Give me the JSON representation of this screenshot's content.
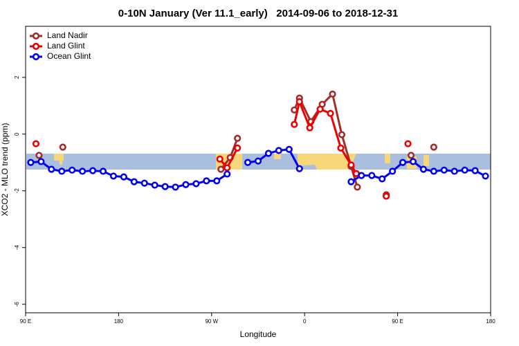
{
  "chart_data": {
    "type": "line",
    "title": "0-10N January (Ver 11.1_early)   2014-09-06 to 2018-12-31",
    "xlabel": "Longitude",
    "ylabel": "XCO2 - MLO trend (ppm)",
    "xlim": [
      90,
      540
    ],
    "ylim": [
      -6.3,
      3.8
    ],
    "xticks": [
      {
        "value": 90,
        "label": "90 E"
      },
      180,
      {
        "value": 270,
        "label": "90 W"
      },
      {
        "value": 360,
        "label": "0"
      },
      {
        "value": 450,
        "label": "90 E"
      },
      {
        "value": 540,
        "label": "180"
      }
    ],
    "yticks": [
      2,
      0,
      -2,
      -4,
      -6
    ],
    "legend": "topleft",
    "series": [
      {
        "name": "Land Nadir",
        "color": "#a52a2a",
        "x": [
          103,
          114,
          126,
          200,
          279,
          288,
          295,
          320,
          350,
          355,
          366,
          377,
          387,
          396,
          405,
          411,
          425,
          439,
          450,
          463,
          475,
          485
        ],
        "values": [
          -0.75,
          null,
          -0.46,
          null,
          -1.24,
          -0.83,
          -0.15,
          null,
          0.85,
          1.27,
          0.44,
          1.05,
          1.41,
          -0.02,
          -1.14,
          -1.87,
          null,
          -2.14,
          null,
          -0.75,
          null,
          -0.46
        ]
      },
      {
        "name": "Land Glint",
        "color": "#ee0000",
        "x": [
          100,
          200,
          278,
          285,
          295,
          320,
          350,
          355,
          365,
          375,
          385,
          395,
          405,
          410,
          425,
          439,
          450,
          460
        ],
        "values": [
          -0.34,
          null,
          -0.88,
          -1.19,
          -0.49,
          null,
          0.34,
          1.14,
          0.22,
          0.88,
          0.73,
          -0.49,
          -1.09,
          -1.39,
          null,
          -2.19,
          null,
          -0.34
        ]
      },
      {
        "name": "Ocean Glint",
        "color": "#0000ee",
        "x": [
          95,
          105,
          115,
          125,
          135,
          145,
          155,
          165,
          175,
          185,
          195,
          205,
          215,
          225,
          235,
          245,
          255,
          265,
          275,
          285,
          295,
          305,
          315,
          325,
          335,
          345,
          355,
          380,
          405,
          415,
          425,
          435,
          445,
          455,
          465,
          475,
          485,
          495,
          505,
          515,
          525,
          535
        ],
        "values": [
          -1.0,
          -0.97,
          -1.24,
          -1.31,
          -1.27,
          -1.31,
          -1.29,
          -1.31,
          -1.48,
          -1.51,
          -1.68,
          -1.73,
          -1.8,
          -1.85,
          -1.87,
          -1.78,
          -1.75,
          -1.65,
          -1.65,
          -1.41,
          null,
          -1.0,
          -0.95,
          -0.68,
          -0.58,
          -0.54,
          -1.22,
          null,
          -1.68,
          -1.46,
          -1.46,
          -1.58,
          -1.31,
          -1.0,
          -0.97,
          -1.24,
          -1.31,
          -1.27,
          -1.31,
          -1.27,
          -1.29,
          -1.48
        ]
      }
    ]
  }
}
